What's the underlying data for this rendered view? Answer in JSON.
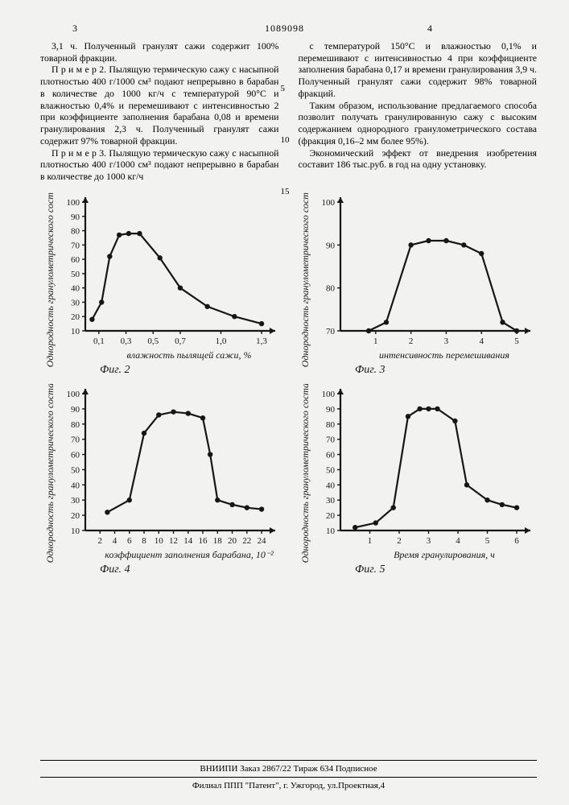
{
  "header": {
    "page_left": "3",
    "patent_no": "1089098",
    "page_right": "4"
  },
  "text": {
    "left_p1": "3,1 ч. Полученный гранулят сажи содержит 100% товарной фракции.",
    "left_p2": "П р и м е р  2. Пылящую термическую сажу с насыпной плотностью 400 г/1000 см³ подают непрерывно в барабан в количестве до 1000 кг/ч с температурой 90°С и влажностью 0,4% и перемешивают с интенсивностью 2 при коэффициенте заполнения барабана 0,08 и времени гранулирования 2,3 ч. Полученный гранулят сажи содержит 97% товарной фракции.",
    "left_p3": "П р и м е р  3. Пылящую термическую сажу с насыпной плотностью 400 г/1000 см³ подают непрерывно в барабан в количестве до 1000 кг/ч",
    "right_p1": "с температурой 150°С и влажностью 0,1% и перемешивают с интенсивностью 4 при коэффициенте заполнения барабана 0,17 и времени гранулирования 3,9 ч. Полученный гранулят сажи содержит 98% товарной фракций.",
    "right_p2": "Таким образом, использование предлагаемого способа позволит получать гранулированную сажу с высоким содержанием однородного гранулометрического состава (фракция 0,16–2 мм более 95%).",
    "right_p3": "Экономический эффект от внедрения изобретения составит 186 тыс.руб. в год на одну установку.",
    "lineno_5": "5",
    "lineno_10": "10",
    "lineno_15": "15"
  },
  "figs": {
    "ylabel": "Однородность гранулометрического состава, %",
    "fig2": {
      "cap": "Фиг. 2",
      "xlabel": "влажность пылящей сажи, %",
      "xticks": [
        "0,1",
        "0,3",
        "0,5",
        "0,7",
        "1,0",
        "1,3"
      ],
      "yticks": [
        "10",
        "20",
        "30",
        "40",
        "50",
        "60",
        "70",
        "80",
        "90",
        "100"
      ],
      "pts": [
        [
          0.05,
          18
        ],
        [
          0.12,
          30
        ],
        [
          0.18,
          62
        ],
        [
          0.25,
          77
        ],
        [
          0.32,
          78
        ],
        [
          0.4,
          78
        ],
        [
          0.55,
          61
        ],
        [
          0.7,
          40
        ],
        [
          0.9,
          27
        ],
        [
          1.1,
          20
        ],
        [
          1.3,
          15
        ]
      ]
    },
    "fig3": {
      "cap": "Фиг. 3",
      "xlabel": "интенсивность перемешивания",
      "xticks": [
        "1",
        "2",
        "3",
        "4",
        "5"
      ],
      "yticks": [
        "70",
        "80",
        "90",
        "100"
      ],
      "pts": [
        [
          0.8,
          70
        ],
        [
          1.3,
          72
        ],
        [
          2.0,
          90
        ],
        [
          2.5,
          91
        ],
        [
          3.0,
          91
        ],
        [
          3.5,
          90
        ],
        [
          4.0,
          88
        ],
        [
          4.6,
          72
        ],
        [
          5.0,
          70
        ]
      ]
    },
    "fig4": {
      "cap": "Фиг. 4",
      "xlabel": "коэффициент заполнения барабана, 10⁻²",
      "xticks": [
        "2",
        "4",
        "6",
        "8",
        "10",
        "12",
        "14",
        "16",
        "18",
        "20",
        "22",
        "24"
      ],
      "yticks": [
        "10",
        "20",
        "30",
        "40",
        "50",
        "60",
        "70",
        "80",
        "90",
        "100"
      ],
      "pts": [
        [
          3,
          22
        ],
        [
          6,
          30
        ],
        [
          8,
          74
        ],
        [
          10,
          86
        ],
        [
          12,
          88
        ],
        [
          14,
          87
        ],
        [
          16,
          84
        ],
        [
          17,
          60
        ],
        [
          18,
          30
        ],
        [
          20,
          27
        ],
        [
          22,
          25
        ],
        [
          24,
          24
        ]
      ]
    },
    "fig5": {
      "cap": "Фиг. 5",
      "xlabel": "Время гранулирования, ч",
      "xticks": [
        "1",
        "2",
        "3",
        "4",
        "5",
        "6"
      ],
      "yticks": [
        "10",
        "20",
        "30",
        "40",
        "50",
        "60",
        "70",
        "80",
        "90",
        "100"
      ],
      "pts": [
        [
          0.5,
          12
        ],
        [
          1.2,
          15
        ],
        [
          1.8,
          25
        ],
        [
          2.3,
          85
        ],
        [
          2.7,
          90
        ],
        [
          3.0,
          90
        ],
        [
          3.3,
          90
        ],
        [
          3.9,
          82
        ],
        [
          4.3,
          40
        ],
        [
          5.0,
          30
        ],
        [
          5.5,
          27
        ],
        [
          6.0,
          25
        ]
      ]
    }
  },
  "footer": {
    "line1": "ВНИИПИ Заказ 2867/22    Тираж 634    Подписное",
    "line2": "Филиал ППП \"Патент\", г. Ужгород, ул.Проектная,4"
  },
  "style": {
    "line_w": 2.2,
    "arrow": 7,
    "pt_r": 3.2,
    "bg": "#f2f2f0",
    "ink": "#161616",
    "font_axis": "italic 12px 'Times New Roman',serif",
    "font_tick": "11px 'Times New Roman',serif",
    "font_cap": "italic 14px 'Times New Roman',serif"
  }
}
